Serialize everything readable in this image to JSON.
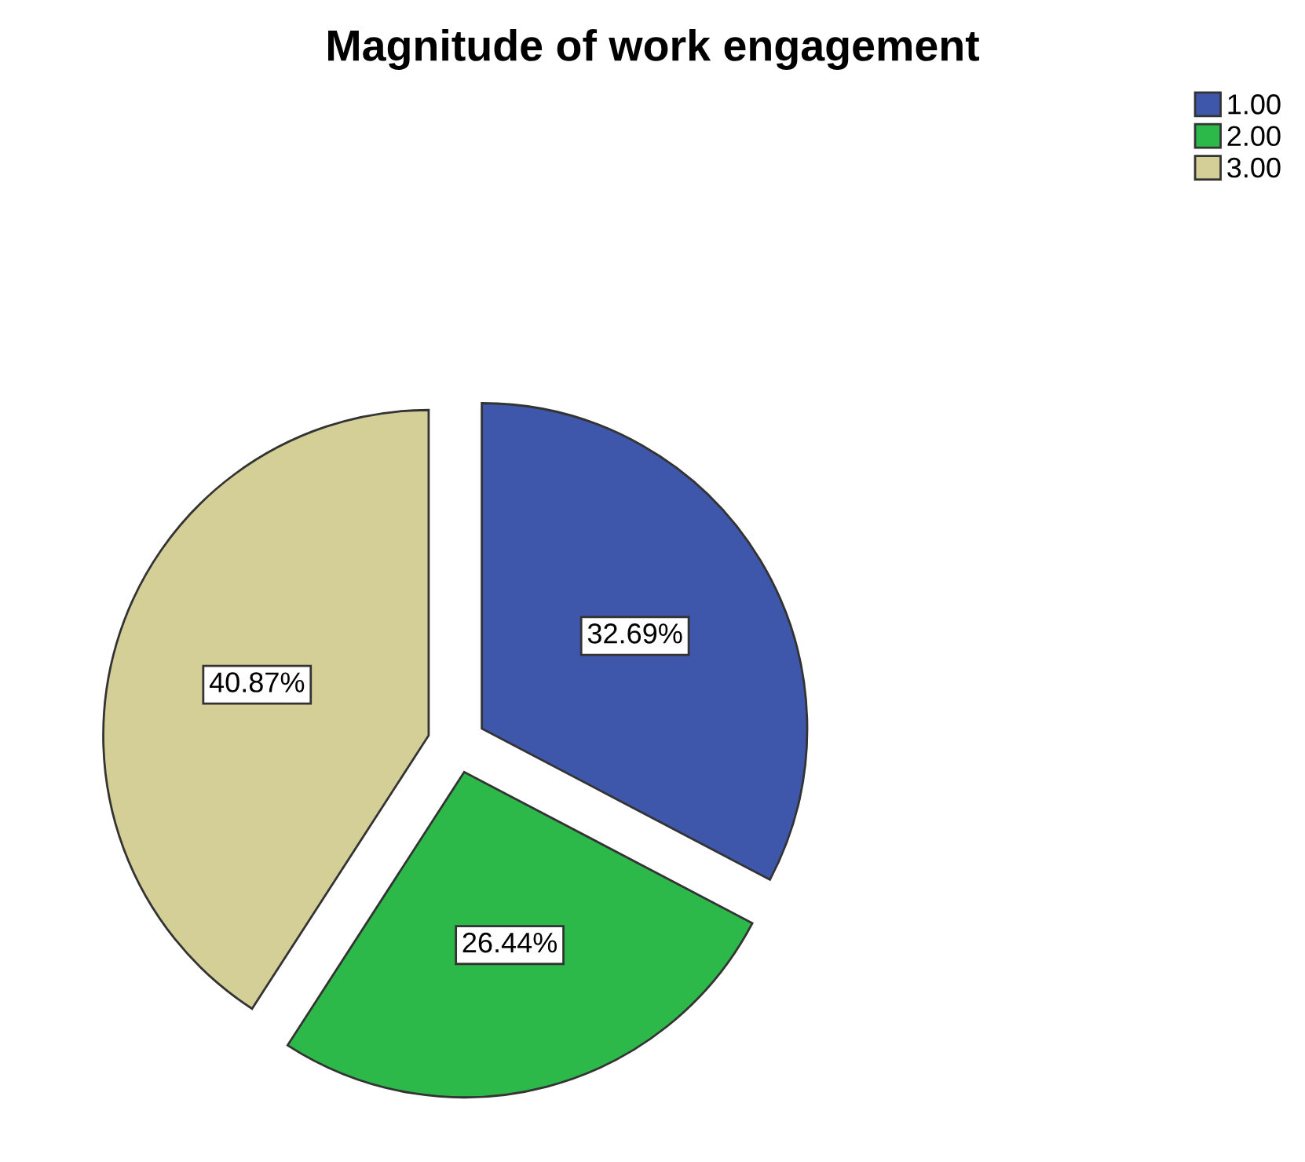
{
  "chart_data": {
    "type": "pie",
    "title": "Magnitude of work engagement",
    "categories": [
      "1.00",
      "2.00",
      "3.00"
    ],
    "values": [
      32.69,
      26.44,
      40.87
    ],
    "colors": [
      "#3f57ab",
      "#2db84a",
      "#d4cf97"
    ],
    "value_labels": [
      "32.69%",
      "26.44%",
      "40.87%"
    ],
    "legend": "top right"
  }
}
